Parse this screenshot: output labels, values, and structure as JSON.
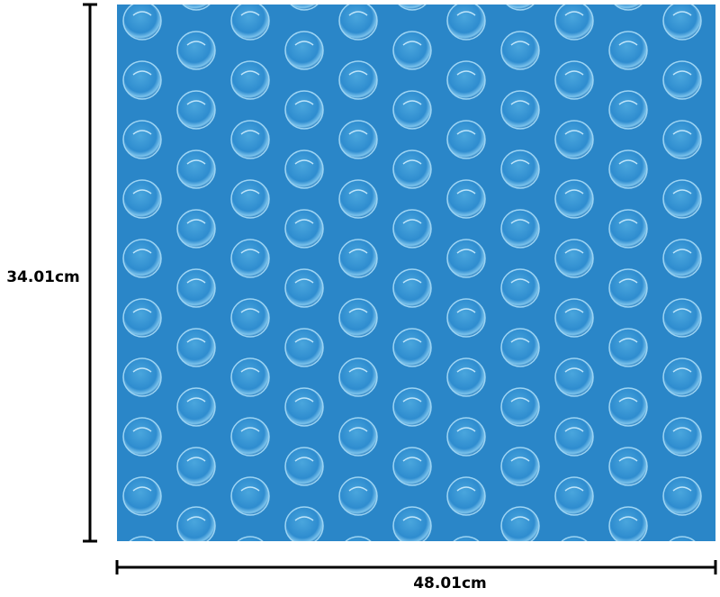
{
  "dimensions": {
    "height_label": "34.01cm",
    "width_label": "48.01cm"
  }
}
